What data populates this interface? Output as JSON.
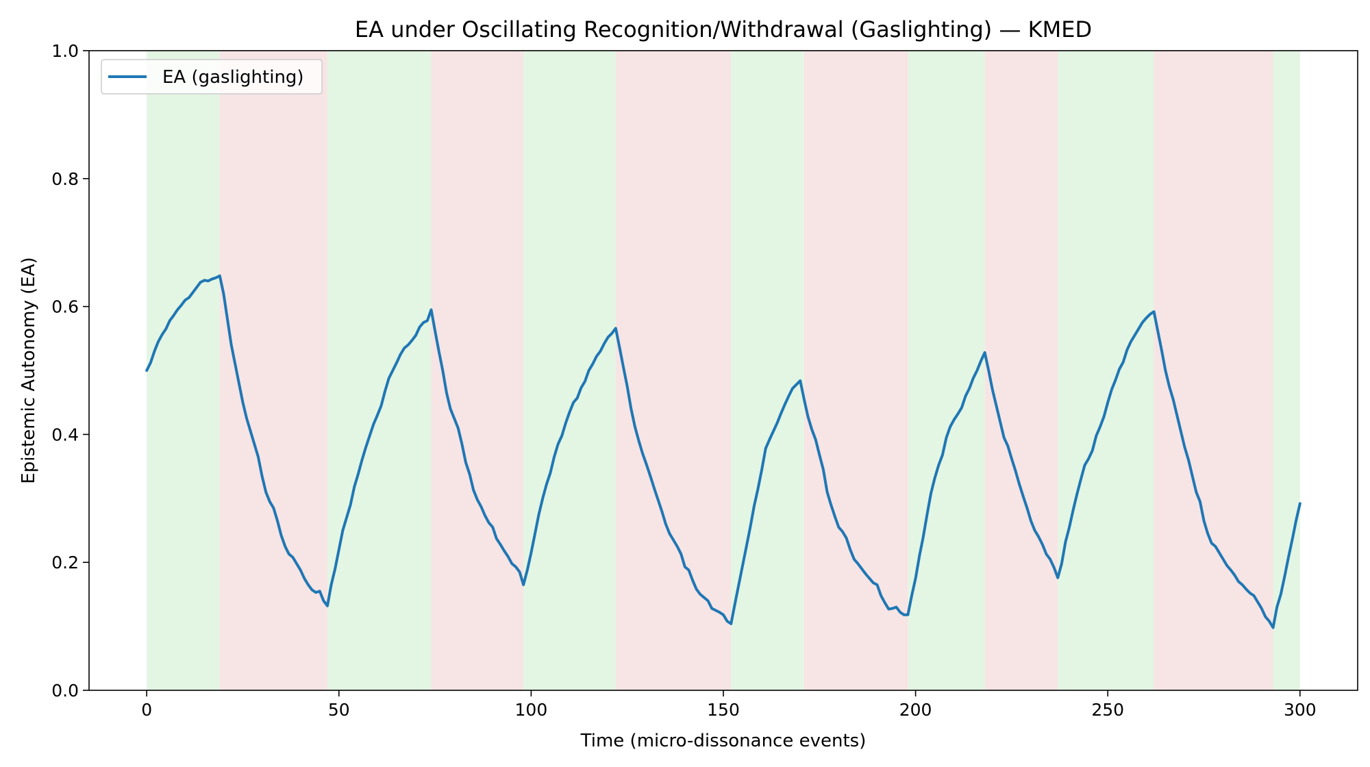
{
  "chart_data": {
    "type": "line",
    "title": "EA under Oscillating Recognition/Withdrawal (Gaslighting) — KMED",
    "xlabel": "Time (micro-dissonance events)",
    "ylabel": "Epistemic Autonomy (EA)",
    "xlim": [
      -15,
      315
    ],
    "ylim": [
      0.0,
      1.0
    ],
    "x_ticks": [
      0,
      50,
      100,
      150,
      200,
      250,
      300
    ],
    "y_ticks": [
      "0.0",
      "0.2",
      "0.4",
      "0.6",
      "0.8",
      "1.0"
    ],
    "grid": false,
    "legend": {
      "position": "top-left",
      "entries": [
        "EA (gaslighting)"
      ]
    },
    "colors": {
      "line": "#1f77b4",
      "recognition_band": "#e3f5e3",
      "withdrawal_band": "#f7e4e4"
    },
    "phases": [
      {
        "phase": "recognition",
        "start": 0,
        "end": 19
      },
      {
        "phase": "withdrawal",
        "start": 19,
        "end": 47
      },
      {
        "phase": "recognition",
        "start": 47,
        "end": 74
      },
      {
        "phase": "withdrawal",
        "start": 74,
        "end": 98
      },
      {
        "phase": "recognition",
        "start": 98,
        "end": 122
      },
      {
        "phase": "withdrawal",
        "start": 122,
        "end": 152
      },
      {
        "phase": "recognition",
        "start": 152,
        "end": 171
      },
      {
        "phase": "withdrawal",
        "start": 171,
        "end": 198
      },
      {
        "phase": "recognition",
        "start": 198,
        "end": 218
      },
      {
        "phase": "withdrawal",
        "start": 218,
        "end": 237
      },
      {
        "phase": "recognition",
        "start": 237,
        "end": 262
      },
      {
        "phase": "withdrawal",
        "start": 262,
        "end": 293
      },
      {
        "phase": "recognition",
        "start": 293,
        "end": 300
      }
    ],
    "series": [
      {
        "name": "EA (gaslighting)",
        "points": [
          [
            0,
            0.5
          ],
          [
            1,
            0.512
          ],
          [
            2,
            0.53
          ],
          [
            3,
            0.545
          ],
          [
            4,
            0.556
          ],
          [
            5,
            0.565
          ],
          [
            6,
            0.578
          ],
          [
            7,
            0.586
          ],
          [
            8,
            0.595
          ],
          [
            9,
            0.602
          ],
          [
            10,
            0.61
          ],
          [
            11,
            0.614
          ],
          [
            12,
            0.622
          ],
          [
            13,
            0.63
          ],
          [
            14,
            0.638
          ],
          [
            15,
            0.641
          ],
          [
            16,
            0.64
          ],
          [
            17,
            0.643
          ],
          [
            18,
            0.645
          ],
          [
            19,
            0.648
          ],
          [
            20,
            0.62
          ],
          [
            21,
            0.58
          ],
          [
            22,
            0.54
          ],
          [
            23,
            0.51
          ],
          [
            24,
            0.48
          ],
          [
            25,
            0.45
          ],
          [
            26,
            0.425
          ],
          [
            27,
            0.405
          ],
          [
            28,
            0.385
          ],
          [
            29,
            0.365
          ],
          [
            30,
            0.335
          ],
          [
            31,
            0.31
          ],
          [
            32,
            0.295
          ],
          [
            33,
            0.285
          ],
          [
            34,
            0.265
          ],
          [
            35,
            0.242
          ],
          [
            36,
            0.225
          ],
          [
            37,
            0.213
          ],
          [
            38,
            0.208
          ],
          [
            39,
            0.198
          ],
          [
            40,
            0.188
          ],
          [
            41,
            0.175
          ],
          [
            42,
            0.165
          ],
          [
            43,
            0.157
          ],
          [
            44,
            0.153
          ],
          [
            45,
            0.155
          ],
          [
            46,
            0.14
          ],
          [
            47,
            0.132
          ],
          [
            48,
            0.165
          ],
          [
            49,
            0.19
          ],
          [
            50,
            0.22
          ],
          [
            51,
            0.25
          ],
          [
            52,
            0.27
          ],
          [
            53,
            0.29
          ],
          [
            54,
            0.318
          ],
          [
            55,
            0.338
          ],
          [
            56,
            0.36
          ],
          [
            57,
            0.38
          ],
          [
            58,
            0.398
          ],
          [
            59,
            0.416
          ],
          [
            60,
            0.43
          ],
          [
            61,
            0.445
          ],
          [
            62,
            0.468
          ],
          [
            63,
            0.488
          ],
          [
            64,
            0.5
          ],
          [
            65,
            0.512
          ],
          [
            66,
            0.525
          ],
          [
            67,
            0.535
          ],
          [
            68,
            0.54
          ],
          [
            69,
            0.547
          ],
          [
            70,
            0.555
          ],
          [
            71,
            0.568
          ],
          [
            72,
            0.575
          ],
          [
            73,
            0.578
          ],
          [
            74,
            0.595
          ],
          [
            75,
            0.562
          ],
          [
            76,
            0.53
          ],
          [
            77,
            0.5
          ],
          [
            78,
            0.465
          ],
          [
            79,
            0.44
          ],
          [
            80,
            0.425
          ],
          [
            81,
            0.41
          ],
          [
            82,
            0.385
          ],
          [
            83,
            0.356
          ],
          [
            84,
            0.338
          ],
          [
            85,
            0.313
          ],
          [
            86,
            0.298
          ],
          [
            87,
            0.287
          ],
          [
            88,
            0.273
          ],
          [
            89,
            0.262
          ],
          [
            90,
            0.255
          ],
          [
            91,
            0.237
          ],
          [
            92,
            0.228
          ],
          [
            93,
            0.218
          ],
          [
            94,
            0.209
          ],
          [
            95,
            0.198
          ],
          [
            96,
            0.193
          ],
          [
            97,
            0.185
          ],
          [
            98,
            0.165
          ],
          [
            99,
            0.188
          ],
          [
            100,
            0.215
          ],
          [
            101,
            0.245
          ],
          [
            102,
            0.275
          ],
          [
            103,
            0.3
          ],
          [
            104,
            0.322
          ],
          [
            105,
            0.34
          ],
          [
            106,
            0.365
          ],
          [
            107,
            0.385
          ],
          [
            108,
            0.398
          ],
          [
            109,
            0.418
          ],
          [
            110,
            0.435
          ],
          [
            111,
            0.45
          ],
          [
            112,
            0.457
          ],
          [
            113,
            0.473
          ],
          [
            114,
            0.483
          ],
          [
            115,
            0.5
          ],
          [
            116,
            0.51
          ],
          [
            117,
            0.522
          ],
          [
            118,
            0.53
          ],
          [
            119,
            0.542
          ],
          [
            120,
            0.552
          ],
          [
            121,
            0.558
          ],
          [
            122,
            0.566
          ],
          [
            123,
            0.536
          ],
          [
            124,
            0.505
          ],
          [
            125,
            0.475
          ],
          [
            126,
            0.44
          ],
          [
            127,
            0.412
          ],
          [
            128,
            0.39
          ],
          [
            129,
            0.37
          ],
          [
            130,
            0.353
          ],
          [
            131,
            0.335
          ],
          [
            132,
            0.316
          ],
          [
            133,
            0.298
          ],
          [
            134,
            0.28
          ],
          [
            135,
            0.26
          ],
          [
            136,
            0.245
          ],
          [
            137,
            0.235
          ],
          [
            138,
            0.225
          ],
          [
            139,
            0.213
          ],
          [
            140,
            0.193
          ],
          [
            141,
            0.188
          ],
          [
            142,
            0.172
          ],
          [
            143,
            0.158
          ],
          [
            144,
            0.15
          ],
          [
            145,
            0.145
          ],
          [
            146,
            0.14
          ],
          [
            147,
            0.128
          ],
          [
            148,
            0.125
          ],
          [
            149,
            0.122
          ],
          [
            150,
            0.118
          ],
          [
            151,
            0.108
          ],
          [
            152,
            0.104
          ],
          [
            153,
            0.135
          ],
          [
            154,
            0.165
          ],
          [
            155,
            0.195
          ],
          [
            156,
            0.225
          ],
          [
            157,
            0.255
          ],
          [
            158,
            0.288
          ],
          [
            159,
            0.315
          ],
          [
            160,
            0.345
          ],
          [
            161,
            0.378
          ],
          [
            162,
            0.392
          ],
          [
            163,
            0.405
          ],
          [
            164,
            0.418
          ],
          [
            165,
            0.433
          ],
          [
            166,
            0.447
          ],
          [
            167,
            0.46
          ],
          [
            168,
            0.472
          ],
          [
            169,
            0.478
          ],
          [
            170,
            0.484
          ],
          [
            171,
            0.455
          ],
          [
            172,
            0.428
          ],
          [
            173,
            0.408
          ],
          [
            174,
            0.392
          ],
          [
            175,
            0.368
          ],
          [
            176,
            0.345
          ],
          [
            177,
            0.31
          ],
          [
            178,
            0.29
          ],
          [
            179,
            0.272
          ],
          [
            180,
            0.255
          ],
          [
            181,
            0.248
          ],
          [
            182,
            0.238
          ],
          [
            183,
            0.22
          ],
          [
            184,
            0.205
          ],
          [
            185,
            0.198
          ],
          [
            186,
            0.19
          ],
          [
            187,
            0.182
          ],
          [
            188,
            0.175
          ],
          [
            189,
            0.168
          ],
          [
            190,
            0.165
          ],
          [
            191,
            0.148
          ],
          [
            192,
            0.137
          ],
          [
            193,
            0.127
          ],
          [
            194,
            0.128
          ],
          [
            195,
            0.13
          ],
          [
            196,
            0.122
          ],
          [
            197,
            0.118
          ],
          [
            198,
            0.118
          ],
          [
            199,
            0.148
          ],
          [
            200,
            0.175
          ],
          [
            201,
            0.21
          ],
          [
            202,
            0.24
          ],
          [
            203,
            0.275
          ],
          [
            204,
            0.308
          ],
          [
            205,
            0.332
          ],
          [
            206,
            0.352
          ],
          [
            207,
            0.368
          ],
          [
            208,
            0.395
          ],
          [
            209,
            0.412
          ],
          [
            210,
            0.423
          ],
          [
            211,
            0.432
          ],
          [
            212,
            0.442
          ],
          [
            213,
            0.46
          ],
          [
            214,
            0.472
          ],
          [
            215,
            0.488
          ],
          [
            216,
            0.5
          ],
          [
            217,
            0.515
          ],
          [
            218,
            0.528
          ],
          [
            219,
            0.5
          ],
          [
            220,
            0.47
          ],
          [
            221,
            0.445
          ],
          [
            222,
            0.42
          ],
          [
            223,
            0.395
          ],
          [
            224,
            0.382
          ],
          [
            225,
            0.362
          ],
          [
            226,
            0.343
          ],
          [
            227,
            0.322
          ],
          [
            228,
            0.303
          ],
          [
            229,
            0.285
          ],
          [
            230,
            0.265
          ],
          [
            231,
            0.25
          ],
          [
            232,
            0.24
          ],
          [
            233,
            0.228
          ],
          [
            234,
            0.213
          ],
          [
            235,
            0.205
          ],
          [
            236,
            0.192
          ],
          [
            237,
            0.176
          ],
          [
            238,
            0.198
          ],
          [
            239,
            0.232
          ],
          [
            240,
            0.255
          ],
          [
            241,
            0.282
          ],
          [
            242,
            0.307
          ],
          [
            243,
            0.33
          ],
          [
            244,
            0.352
          ],
          [
            245,
            0.362
          ],
          [
            246,
            0.375
          ],
          [
            247,
            0.398
          ],
          [
            248,
            0.412
          ],
          [
            249,
            0.428
          ],
          [
            250,
            0.45
          ],
          [
            251,
            0.47
          ],
          [
            252,
            0.485
          ],
          [
            253,
            0.502
          ],
          [
            254,
            0.513
          ],
          [
            255,
            0.532
          ],
          [
            256,
            0.545
          ],
          [
            257,
            0.555
          ],
          [
            258,
            0.565
          ],
          [
            259,
            0.575
          ],
          [
            260,
            0.582
          ],
          [
            261,
            0.588
          ],
          [
            262,
            0.592
          ],
          [
            263,
            0.562
          ],
          [
            264,
            0.532
          ],
          [
            265,
            0.5
          ],
          [
            266,
            0.475
          ],
          [
            267,
            0.455
          ],
          [
            268,
            0.43
          ],
          [
            269,
            0.405
          ],
          [
            270,
            0.38
          ],
          [
            271,
            0.36
          ],
          [
            272,
            0.335
          ],
          [
            273,
            0.31
          ],
          [
            274,
            0.295
          ],
          [
            275,
            0.265
          ],
          [
            276,
            0.245
          ],
          [
            277,
            0.23
          ],
          [
            278,
            0.225
          ],
          [
            279,
            0.215
          ],
          [
            280,
            0.205
          ],
          [
            281,
            0.195
          ],
          [
            282,
            0.188
          ],
          [
            283,
            0.18
          ],
          [
            284,
            0.17
          ],
          [
            285,
            0.165
          ],
          [
            286,
            0.158
          ],
          [
            287,
            0.152
          ],
          [
            288,
            0.148
          ],
          [
            289,
            0.138
          ],
          [
            290,
            0.128
          ],
          [
            291,
            0.115
          ],
          [
            292,
            0.108
          ],
          [
            293,
            0.098
          ],
          [
            294,
            0.13
          ],
          [
            295,
            0.15
          ],
          [
            296,
            0.178
          ],
          [
            297,
            0.208
          ],
          [
            298,
            0.236
          ],
          [
            299,
            0.266
          ],
          [
            300,
            0.292
          ]
        ]
      }
    ]
  }
}
